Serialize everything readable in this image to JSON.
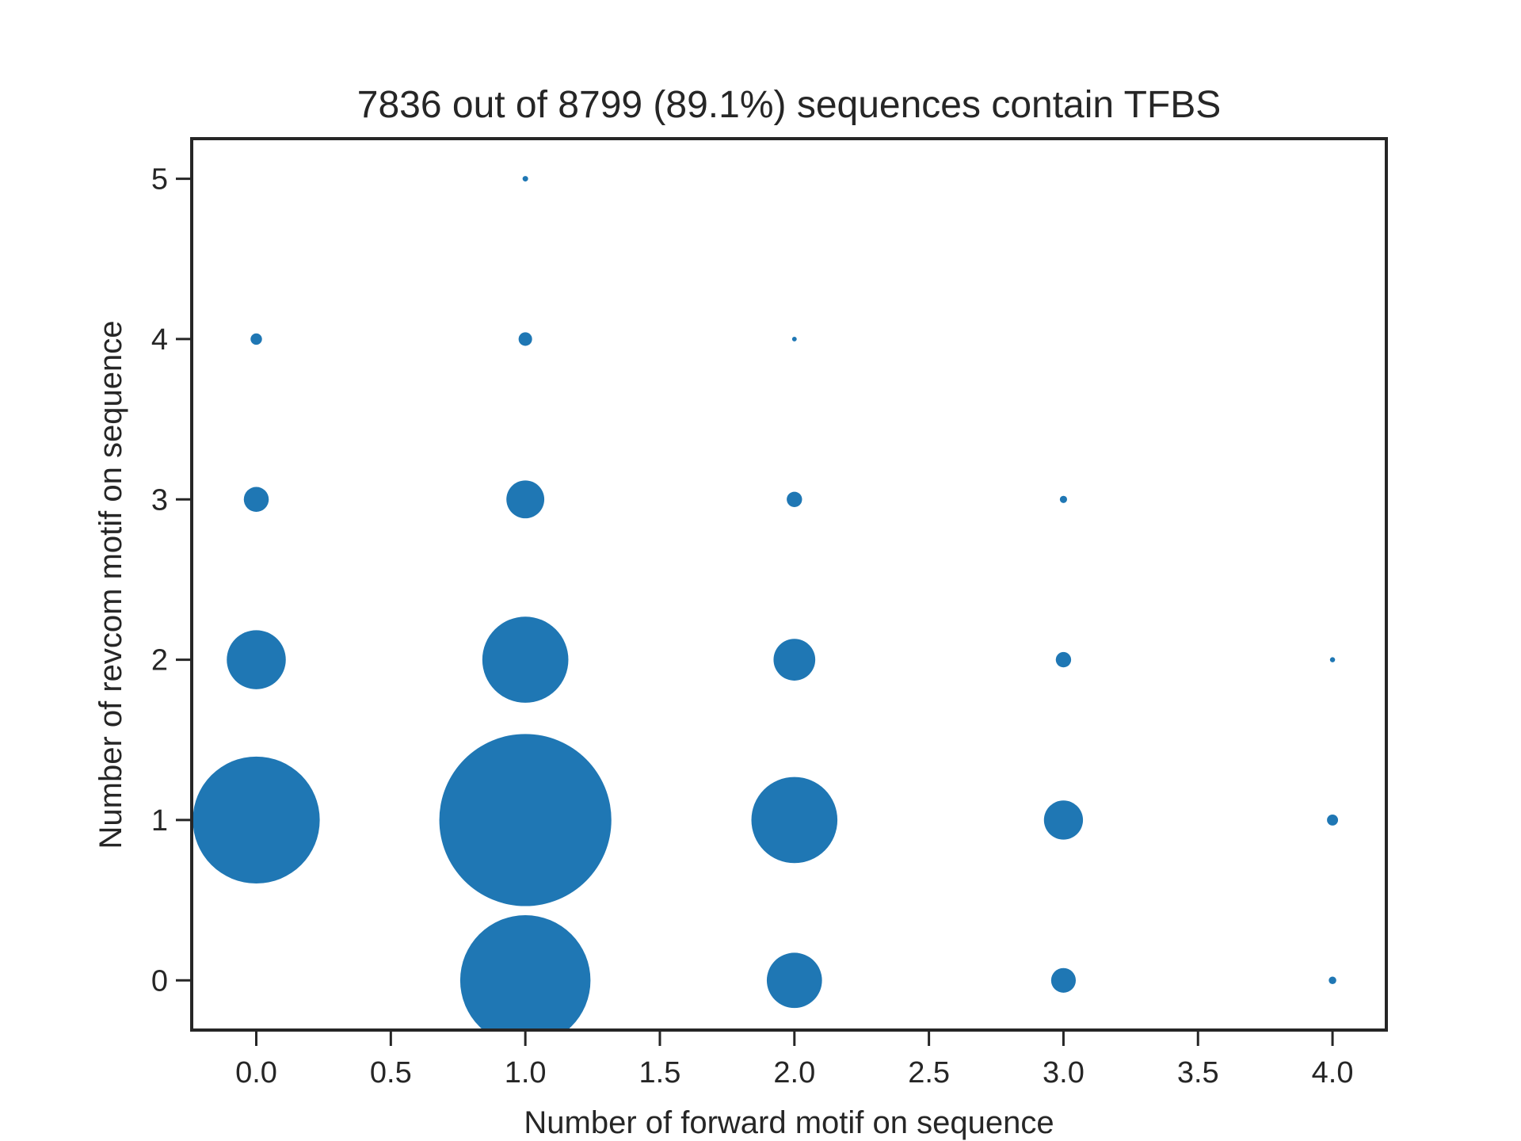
{
  "chart_data": {
    "type": "scatter",
    "title": "7836 out of 8799 (89.1%) sequences contain TFBS",
    "xlabel": "Number of forward motif on sequence",
    "ylabel": "Number of revcom motif on sequence",
    "xlim": [
      -0.24,
      4.2
    ],
    "ylim": [
      -0.31,
      5.25
    ],
    "xticks": [
      0.0,
      0.5,
      1.0,
      1.5,
      2.0,
      2.5,
      3.0,
      3.5,
      4.0
    ],
    "xtick_labels": [
      "0.0",
      "0.5",
      "1.0",
      "1.5",
      "2.0",
      "2.5",
      "3.0",
      "3.5",
      "4.0"
    ],
    "yticks": [
      0,
      1,
      2,
      3,
      4,
      5
    ],
    "ytick_labels": [
      "0",
      "1",
      "2",
      "3",
      "4",
      "5"
    ],
    "grid": false,
    "series_color": "#1f77b4",
    "points": [
      {
        "x": 1,
        "y": 5,
        "size": 7
      },
      {
        "x": 0,
        "y": 4,
        "size": 30
      },
      {
        "x": 1,
        "y": 4,
        "size": 42
      },
      {
        "x": 2,
        "y": 4,
        "size": 5
      },
      {
        "x": 0,
        "y": 3,
        "size": 143
      },
      {
        "x": 1,
        "y": 3,
        "size": 330
      },
      {
        "x": 2,
        "y": 3,
        "size": 54
      },
      {
        "x": 3,
        "y": 3,
        "size": 12
      },
      {
        "x": 0,
        "y": 2,
        "size": 800
      },
      {
        "x": 1,
        "y": 2,
        "size": 1700
      },
      {
        "x": 2,
        "y": 2,
        "size": 400
      },
      {
        "x": 3,
        "y": 2,
        "size": 54
      },
      {
        "x": 4,
        "y": 2,
        "size": 6
      },
      {
        "x": 0,
        "y": 1,
        "size": 3700
      },
      {
        "x": 1,
        "y": 1,
        "size": 6800
      },
      {
        "x": 2,
        "y": 1,
        "size": 1700
      },
      {
        "x": 3,
        "y": 1,
        "size": 350
      },
      {
        "x": 4,
        "y": 1,
        "size": 28
      },
      {
        "x": 1,
        "y": 0,
        "size": 3900
      },
      {
        "x": 2,
        "y": 0,
        "size": 700
      },
      {
        "x": 3,
        "y": 0,
        "size": 140
      },
      {
        "x": 4,
        "y": 0,
        "size": 13
      }
    ]
  }
}
